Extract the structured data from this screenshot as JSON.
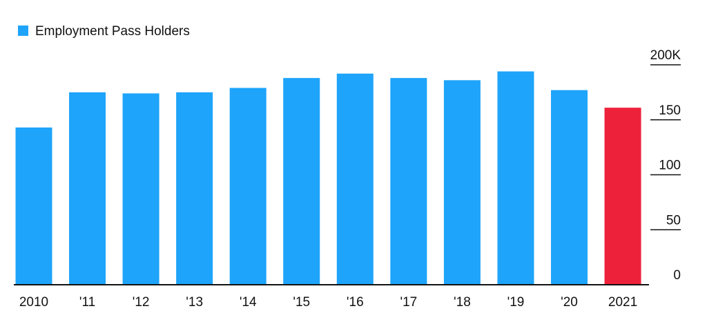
{
  "chart_data": {
    "type": "bar",
    "categories": [
      "2010",
      "'11",
      "'12",
      "'13",
      "'14",
      "'15",
      "'16",
      "'17",
      "'18",
      "'19",
      "'20",
      "2021"
    ],
    "series": [
      {
        "name": "Employment Pass Holders",
        "values": [
          143,
          175,
          174,
          175,
          179,
          188,
          192,
          188,
          186,
          194,
          177,
          161
        ]
      }
    ],
    "highlight_index": 11,
    "y_tick_labels": [
      "0",
      "50",
      "100",
      "150",
      "200K"
    ],
    "y_ticks": [
      0,
      50,
      100,
      150,
      200
    ],
    "ylim": [
      0,
      200
    ],
    "y_axis_side": "right",
    "grid": false,
    "legend_placement": "top-left",
    "colors": {
      "bar": "#1ea4fa",
      "highlight": "#ee213b",
      "axis": "#111111",
      "text": "#111111"
    },
    "title": "",
    "xlabel": "",
    "ylabel": ""
  }
}
